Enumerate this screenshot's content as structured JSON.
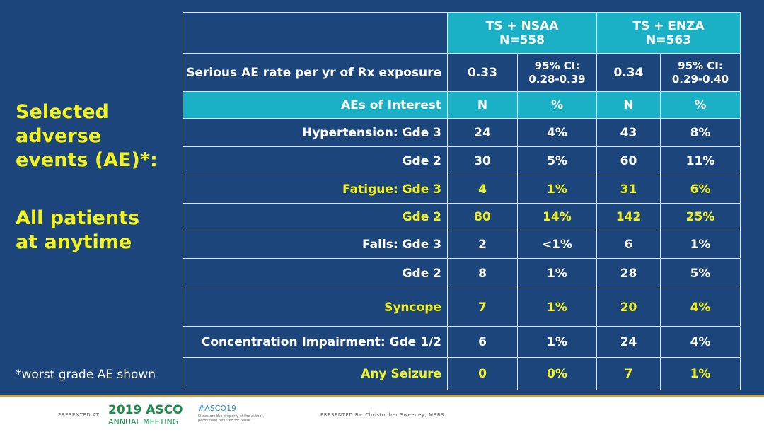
{
  "side": {
    "title": "Selected adverse events (AE)*:",
    "subtitle": "All patients at anytime",
    "footnote": "*worst grade AE shown"
  },
  "table": {
    "arms": [
      {
        "name": "TS + NSAA",
        "n": "N=558"
      },
      {
        "name": "TS + ENZA",
        "n": "N=563"
      }
    ],
    "rate_row": {
      "label": "Serious AE rate per yr of Rx exposure",
      "cells": [
        "0.33",
        "95% CI:",
        "0.28-0.39",
        "0.34",
        "95% CI:",
        "0.29-0.40"
      ]
    },
    "header_row": [
      "AEs of Interest",
      "N",
      "%",
      "N",
      "%"
    ],
    "rows": [
      [
        "Hypertension: Gde 3",
        "24",
        "4%",
        "43",
        "8%"
      ],
      [
        "Gde 2",
        "30",
        "5%",
        "60",
        "11%"
      ],
      [
        "Fatigue: Gde 3",
        "4",
        "1%",
        "31",
        "6%"
      ],
      [
        "Gde 2",
        "80",
        "14%",
        "142",
        "25%"
      ],
      [
        "Falls: Gde 3",
        "2",
        "<1%",
        "6",
        "1%"
      ],
      [
        "Gde 2",
        "8",
        "1%",
        "28",
        "5%"
      ],
      [
        "Syncope",
        "7",
        "1%",
        "20",
        "4%"
      ],
      [
        "Concentration Impairment: Gde 1/2",
        "6",
        "1%",
        "24",
        "4%"
      ],
      [
        "Any Seizure",
        "0",
        "0%",
        "7",
        "1%"
      ]
    ],
    "highlighted_rows": [
      2,
      3,
      6,
      8
    ]
  },
  "footer": {
    "presented_at": "PRESENTED AT:",
    "logo_year_name": "2019 ASCO",
    "logo_sub": "ANNUAL MEETING",
    "hashtag": "#ASCO19",
    "disclaimer": "Slides are the property of the author, permission required for reuse.",
    "presented_by": "PRESENTED BY: Christopher Sweeney, MBBS"
  },
  "colors": {
    "background": "#1c467b",
    "teal": "#1ab1c6",
    "highlight_text": "#f4f21c"
  }
}
